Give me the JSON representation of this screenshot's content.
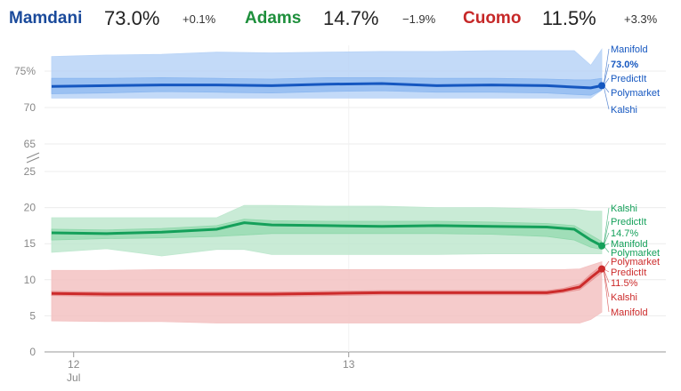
{
  "header": {
    "candidates": [
      {
        "name": "Mamdani",
        "value": "73.0%",
        "change": "+0.1%",
        "color": "#1a4a9b"
      },
      {
        "name": "Adams",
        "value": "14.7%",
        "change": "−1.9%",
        "color": "#1e8f3c"
      },
      {
        "name": "Cuomo",
        "value": "11.5%",
        "change": "+3.3%",
        "color": "#c62828"
      }
    ]
  },
  "chart_data": {
    "type": "line",
    "x_ticks": [
      {
        "label": "12",
        "sub": "Jul"
      },
      {
        "label": "13",
        "sub": ""
      }
    ],
    "y_ticks_upper": [
      "75%",
      "70",
      "65"
    ],
    "y_ticks_lower": [
      "25",
      "20",
      "15",
      "10",
      "5",
      "0"
    ],
    "axis_break": true,
    "grid": true,
    "series": [
      {
        "name": "Mamdani",
        "color": "#1557c0",
        "light": "#b9d4f7",
        "mid": "#8ab6ef",
        "current_label": "73.0%",
        "markets": [
          "Manifold",
          "PredictIt",
          "Polymarket",
          "Kalshi"
        ],
        "x": [
          0,
          0.1,
          0.2,
          0.3,
          0.4,
          0.5,
          0.6,
          0.7,
          0.8,
          0.9,
          0.95,
          0.98,
          1.0
        ],
        "values": [
          72.9,
          73.0,
          73.1,
          73.1,
          73.0,
          73.2,
          73.3,
          73.0,
          73.1,
          73.0,
          72.8,
          72.7,
          73.0
        ],
        "band_inner_low": [
          71.9,
          72.0,
          72.2,
          72.1,
          72.0,
          72.2,
          72.3,
          72.1,
          72.1,
          72.0,
          71.8,
          71.7,
          72.4
        ],
        "band_inner_high": [
          74.0,
          74.0,
          74.1,
          74.0,
          73.9,
          74.1,
          74.1,
          74.0,
          74.0,
          73.9,
          73.8,
          73.8,
          74.0
        ],
        "band_outer_low": [
          71.3,
          71.3,
          71.3,
          71.3,
          71.3,
          71.3,
          71.3,
          71.3,
          71.3,
          71.3,
          71.3,
          71.3,
          72.4
        ],
        "band_outer_high": [
          77.0,
          77.2,
          77.3,
          77.6,
          77.5,
          77.6,
          77.7,
          77.7,
          77.8,
          77.8,
          77.8,
          75.8,
          78.0
        ]
      },
      {
        "name": "Adams",
        "color": "#14a05a",
        "light": "#bfe8cf",
        "mid": "#8fd8ab",
        "current_label": "14.7%",
        "markets": [
          "Kalshi",
          "PredictIt",
          "Manifold",
          "Polymarket"
        ],
        "x": [
          0,
          0.1,
          0.2,
          0.3,
          0.35,
          0.4,
          0.5,
          0.6,
          0.7,
          0.8,
          0.9,
          0.95,
          0.98,
          1.0
        ],
        "values": [
          16.5,
          16.4,
          16.6,
          17.0,
          17.9,
          17.6,
          17.5,
          17.4,
          17.5,
          17.4,
          17.3,
          17.0,
          15.5,
          14.7
        ],
        "band_inner_low": [
          15.5,
          15.7,
          15.8,
          16.0,
          16.2,
          16.4,
          16.4,
          16.4,
          16.4,
          16.3,
          16.0,
          15.5,
          14.5,
          14.2
        ],
        "band_inner_high": [
          17.0,
          16.9,
          17.1,
          17.5,
          18.4,
          18.2,
          18.1,
          18.1,
          18.1,
          18.0,
          17.8,
          17.5,
          16.2,
          15.3
        ],
        "band_outer_low": [
          13.8,
          14.3,
          13.3,
          14.2,
          14.2,
          13.5,
          13.5,
          13.5,
          13.5,
          13.6,
          13.6,
          13.6,
          13.6,
          13.6
        ],
        "band_outer_high": [
          18.6,
          18.6,
          18.6,
          18.6,
          20.3,
          20.3,
          20.2,
          20.2,
          20.0,
          20.0,
          19.8,
          19.8,
          19.5,
          19.5
        ]
      },
      {
        "name": "Cuomo",
        "color": "#cc2b2b",
        "light": "#f3c2c2",
        "mid": "#e89595",
        "current_label": "11.5%",
        "markets": [
          "Polymarket",
          "PredictIt",
          "Kalshi",
          "Manifold"
        ],
        "x": [
          0,
          0.1,
          0.2,
          0.3,
          0.4,
          0.5,
          0.6,
          0.7,
          0.8,
          0.9,
          0.93,
          0.96,
          0.98,
          1.0
        ],
        "values": [
          8.1,
          8.0,
          8.0,
          8.0,
          8.0,
          8.1,
          8.2,
          8.2,
          8.2,
          8.2,
          8.5,
          9.0,
          10.3,
          11.5
        ],
        "band_inner_low": [
          7.8,
          7.7,
          7.7,
          7.7,
          7.7,
          7.8,
          7.9,
          7.9,
          7.9,
          7.9,
          8.2,
          8.6,
          9.8,
          11.0
        ],
        "band_inner_high": [
          8.4,
          8.3,
          8.3,
          8.3,
          8.3,
          8.4,
          8.5,
          8.5,
          8.5,
          8.5,
          8.8,
          9.4,
          10.8,
          12.0
        ],
        "band_outer_low": [
          4.3,
          4.2,
          4.2,
          4.0,
          4.0,
          4.0,
          4.0,
          4.0,
          4.0,
          4.0,
          4.0,
          4.0,
          4.5,
          5.5
        ],
        "band_outer_high": [
          11.3,
          11.3,
          11.4,
          11.4,
          11.4,
          11.4,
          11.4,
          11.4,
          11.4,
          11.4,
          11.4,
          11.5,
          12.0,
          12.5
        ]
      }
    ]
  }
}
